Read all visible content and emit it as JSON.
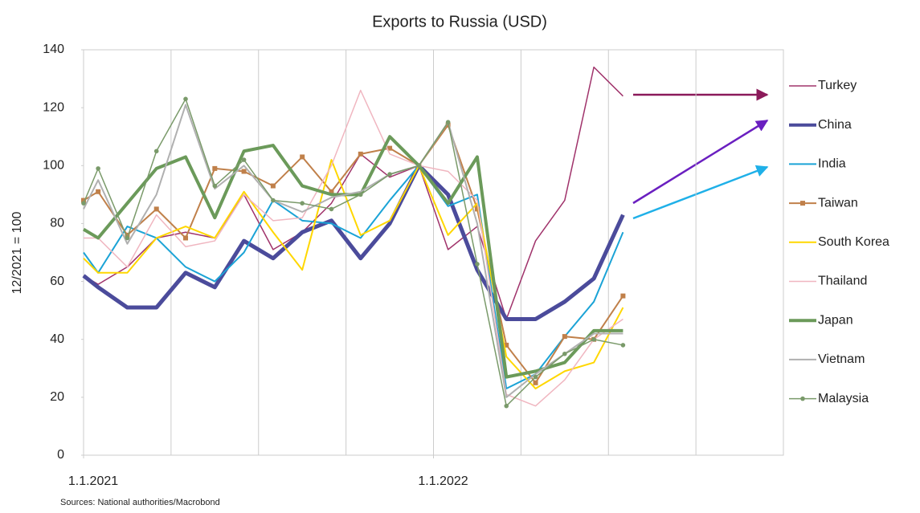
{
  "chart_data": {
    "type": "line",
    "title": "Exports to Russia (USD)",
    "y_label": "12/2021 = 100",
    "source": "Sources: National authorities/Macrobond",
    "x": [
      0,
      0.5,
      1.5,
      2.5,
      3.5,
      4.5,
      5.5,
      6.5,
      7.5,
      8.5,
      9.5,
      10.5,
      11.5,
      12.5,
      13.5,
      14.5,
      15.5,
      16.5,
      17.5,
      18.5
    ],
    "xlim": [
      0,
      24
    ],
    "xticks": [
      {
        "value": 0,
        "label": "1.1.2021"
      },
      {
        "value": 12,
        "label": "1.1.2022"
      }
    ],
    "xgrid": [
      3,
      6,
      9,
      12,
      15,
      18,
      21
    ],
    "ylim": [
      0,
      140
    ],
    "yticks": [
      0,
      20,
      40,
      60,
      80,
      100,
      120,
      140
    ],
    "series": [
      {
        "name": "Turkey",
        "color": "#a0336b",
        "width": 1.5,
        "values": [
          62,
          59,
          65,
          75,
          77,
          75,
          90,
          71,
          77,
          87,
          104,
          96,
          100,
          71,
          79,
          47,
          74,
          88,
          134,
          124
        ]
      },
      {
        "name": "China",
        "color": "#4b4b9b",
        "width": 5,
        "values": [
          62,
          58,
          51,
          51,
          63,
          58,
          74,
          68,
          77,
          81,
          68,
          80,
          100,
          90,
          64,
          47,
          47,
          53,
          61,
          83
        ]
      },
      {
        "name": "India",
        "color": "#1ba3d6",
        "width": 2,
        "values": [
          70,
          63,
          79,
          75,
          65,
          60,
          70,
          88,
          81,
          80,
          75,
          88,
          100,
          86,
          90,
          23,
          28,
          41,
          53,
          77
        ]
      },
      {
        "name": "Taiwan",
        "color": "#c0804a",
        "width": 2,
        "marker": "square",
        "values": [
          88,
          91,
          76,
          85,
          75,
          99,
          98,
          93,
          103,
          91,
          104,
          106,
          100,
          114,
          85,
          38,
          25,
          41,
          40,
          55
        ]
      },
      {
        "name": "South Korea",
        "color": "#ffd700",
        "width": 2,
        "values": [
          68,
          63,
          63,
          75,
          79,
          75,
          91,
          77,
          64,
          102,
          76,
          81,
          100,
          76,
          87,
          34,
          23,
          29,
          32,
          51
        ]
      },
      {
        "name": "Thailand",
        "color": "#f0b6c0",
        "width": 1.5,
        "values": [
          75,
          75,
          65,
          83,
          72,
          74,
          90,
          81,
          82,
          100,
          126,
          104,
          100,
          98,
          88,
          21,
          17,
          26,
          40,
          47
        ]
      },
      {
        "name": "Japan",
        "color": "#6b9a5a",
        "width": 4,
        "values": [
          78,
          75,
          87,
          99,
          103,
          82,
          105,
          107,
          93,
          90,
          90,
          110,
          100,
          87,
          103,
          27,
          29,
          32,
          43,
          43
        ]
      },
      {
        "name": "Vietnam",
        "color": "#b0b0b0",
        "width": 2,
        "values": [
          85,
          95,
          73,
          90,
          121,
          92,
          100,
          88,
          84,
          89,
          91,
          97,
          100,
          115,
          80,
          20,
          28,
          35,
          42,
          42
        ]
      },
      {
        "name": "Malaysia",
        "color": "#7a9a6a",
        "width": 1.5,
        "marker": "circle",
        "values": [
          87,
          99,
          75,
          105,
          123,
          93,
          102,
          88,
          87,
          85,
          90,
          97,
          100,
          115,
          66,
          17,
          27,
          35,
          40,
          38
        ]
      }
    ]
  }
}
